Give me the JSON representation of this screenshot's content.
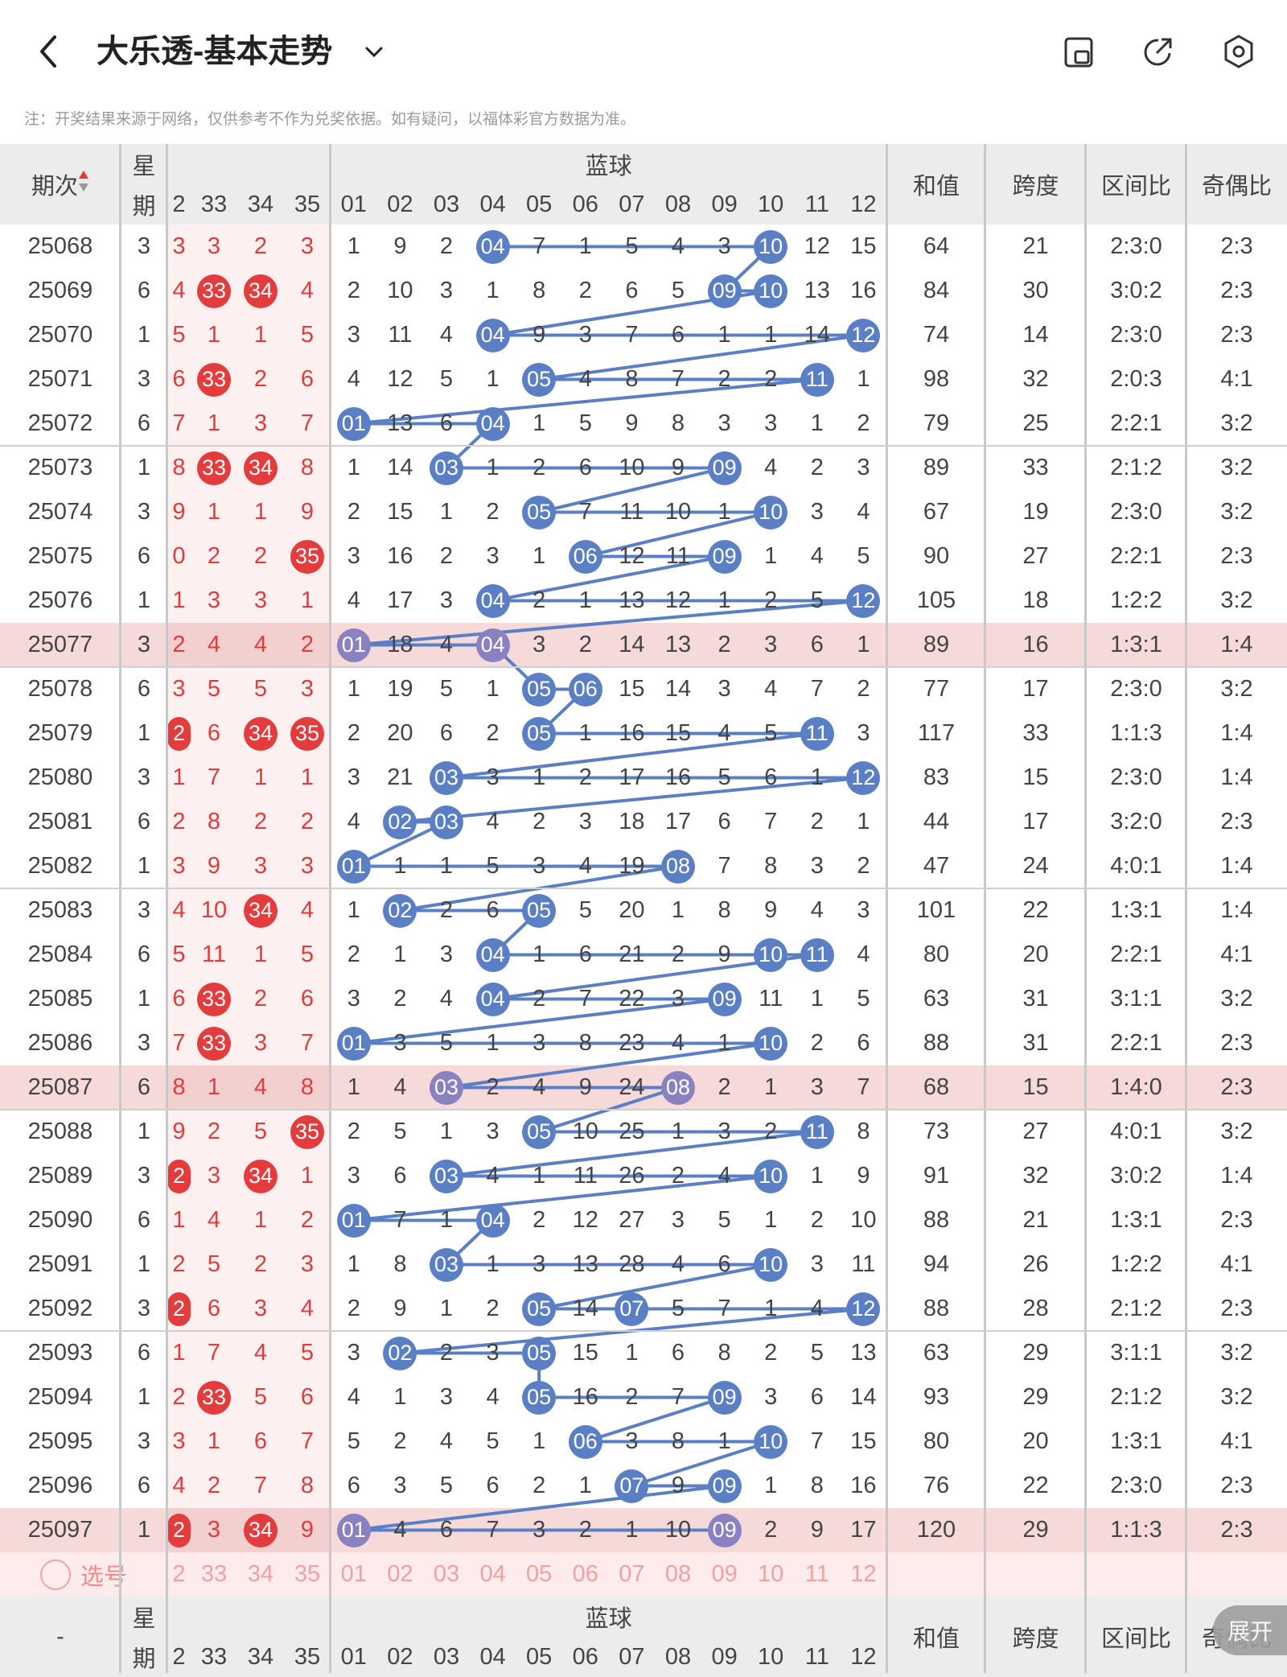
{
  "header": {
    "title": "大乐透-基本走势",
    "note": "注：开奖结果来源于网络，仅供参考不作为兑奖依据。如有疑问，以福体彩官方数据为准。"
  },
  "columns": {
    "period": "期次",
    "weekday_top": "星",
    "weekday_bottom": "期",
    "blue_group": "蓝球",
    "sum": "和值",
    "span": "跨度",
    "zone_ratio": "区间比",
    "odd_even": "奇偶比",
    "red_numbers": [
      "2",
      "33",
      "34",
      "35"
    ],
    "blue_numbers": [
      "01",
      "02",
      "03",
      "04",
      "05",
      "06",
      "07",
      "08",
      "09",
      "10",
      "11",
      "12"
    ]
  },
  "rows": [
    {
      "period": "25068",
      "week": "3",
      "red": [
        "3",
        "3",
        "2",
        "3"
      ],
      "blue": [
        "1",
        "9",
        "2",
        "04",
        "7",
        "1",
        "5",
        "4",
        "3",
        "10",
        "12",
        "15"
      ],
      "sum": "64",
      "span": "21",
      "zone": "2:3:0",
      "oe": "2:3"
    },
    {
      "period": "25069",
      "week": "6",
      "red": [
        "4",
        "33",
        "34",
        "4"
      ],
      "blue": [
        "2",
        "10",
        "3",
        "1",
        "8",
        "2",
        "6",
        "5",
        "09",
        "10",
        "13",
        "16"
      ],
      "sum": "84",
      "span": "30",
      "zone": "3:0:2",
      "oe": "2:3"
    },
    {
      "period": "25070",
      "week": "1",
      "red": [
        "5",
        "1",
        "1",
        "5"
      ],
      "blue": [
        "3",
        "11",
        "4",
        "04",
        "9",
        "3",
        "7",
        "6",
        "1",
        "1",
        "14",
        "12"
      ],
      "sum": "74",
      "span": "14",
      "zone": "2:3:0",
      "oe": "2:3"
    },
    {
      "period": "25071",
      "week": "3",
      "red": [
        "6",
        "33",
        "2",
        "6"
      ],
      "blue": [
        "4",
        "12",
        "5",
        "1",
        "05",
        "4",
        "8",
        "7",
        "2",
        "2",
        "11",
        "1"
      ],
      "sum": "98",
      "span": "32",
      "zone": "2:0:3",
      "oe": "4:1"
    },
    {
      "period": "25072",
      "week": "6",
      "red": [
        "7",
        "1",
        "3",
        "7"
      ],
      "blue": [
        "01",
        "13",
        "6",
        "04",
        "1",
        "5",
        "9",
        "8",
        "3",
        "3",
        "1",
        "2"
      ],
      "sum": "79",
      "span": "25",
      "zone": "2:2:1",
      "oe": "3:2"
    },
    {
      "period": "25073",
      "week": "1",
      "red": [
        "8",
        "33",
        "34",
        "8"
      ],
      "blue": [
        "1",
        "14",
        "03",
        "1",
        "2",
        "6",
        "10",
        "9",
        "09",
        "4",
        "2",
        "3"
      ],
      "sum": "89",
      "span": "33",
      "zone": "2:1:2",
      "oe": "3:2"
    },
    {
      "period": "25074",
      "week": "3",
      "red": [
        "9",
        "1",
        "1",
        "9"
      ],
      "blue": [
        "2",
        "15",
        "1",
        "2",
        "05",
        "7",
        "11",
        "10",
        "1",
        "10",
        "3",
        "4"
      ],
      "sum": "67",
      "span": "19",
      "zone": "2:3:0",
      "oe": "3:2"
    },
    {
      "period": "25075",
      "week": "6",
      "red": [
        "0",
        "2",
        "2",
        "35"
      ],
      "blue": [
        "3",
        "16",
        "2",
        "3",
        "1",
        "06",
        "12",
        "11",
        "09",
        "1",
        "4",
        "5"
      ],
      "sum": "90",
      "span": "27",
      "zone": "2:2:1",
      "oe": "2:3"
    },
    {
      "period": "25076",
      "week": "1",
      "red": [
        "1",
        "3",
        "3",
        "1"
      ],
      "blue": [
        "4",
        "17",
        "3",
        "04",
        "2",
        "1",
        "13",
        "12",
        "1",
        "2",
        "5",
        "12"
      ],
      "sum": "105",
      "span": "18",
      "zone": "1:2:2",
      "oe": "3:2"
    },
    {
      "period": "25077",
      "week": "3",
      "red": [
        "2",
        "4",
        "4",
        "2"
      ],
      "blue": [
        "01",
        "18",
        "4",
        "04",
        "3",
        "2",
        "14",
        "13",
        "2",
        "3",
        "6",
        "1"
      ],
      "sum": "89",
      "span": "16",
      "zone": "1:3:1",
      "oe": "1:4"
    },
    {
      "period": "25078",
      "week": "6",
      "red": [
        "3",
        "5",
        "5",
        "3"
      ],
      "blue": [
        "1",
        "19",
        "5",
        "1",
        "05",
        "06",
        "15",
        "14",
        "3",
        "4",
        "7",
        "2"
      ],
      "sum": "77",
      "span": "17",
      "zone": "2:3:0",
      "oe": "3:2"
    },
    {
      "period": "25079",
      "week": "1",
      "red": [
        "2",
        "6",
        "34",
        "35"
      ],
      "blue": [
        "2",
        "20",
        "6",
        "2",
        "05",
        "1",
        "16",
        "15",
        "4",
        "5",
        "11",
        "3"
      ],
      "sum": "117",
      "span": "33",
      "zone": "1:1:3",
      "oe": "1:4"
    },
    {
      "period": "25080",
      "week": "3",
      "red": [
        "1",
        "7",
        "1",
        "1"
      ],
      "blue": [
        "3",
        "21",
        "03",
        "3",
        "1",
        "2",
        "17",
        "16",
        "5",
        "6",
        "1",
        "12"
      ],
      "sum": "83",
      "span": "15",
      "zone": "2:3:0",
      "oe": "1:4"
    },
    {
      "period": "25081",
      "week": "6",
      "red": [
        "2",
        "8",
        "2",
        "2"
      ],
      "blue": [
        "4",
        "02",
        "03",
        "4",
        "2",
        "3",
        "18",
        "17",
        "6",
        "7",
        "2",
        "1"
      ],
      "sum": "44",
      "span": "17",
      "zone": "3:2:0",
      "oe": "2:3"
    },
    {
      "period": "25082",
      "week": "1",
      "red": [
        "3",
        "9",
        "3",
        "3"
      ],
      "blue": [
        "01",
        "1",
        "1",
        "5",
        "3",
        "4",
        "19",
        "08",
        "7",
        "8",
        "3",
        "2"
      ],
      "sum": "47",
      "span": "24",
      "zone": "4:0:1",
      "oe": "1:4"
    },
    {
      "period": "25083",
      "week": "3",
      "red": [
        "4",
        "10",
        "34",
        "4"
      ],
      "blue": [
        "1",
        "02",
        "2",
        "6",
        "05",
        "5",
        "20",
        "1",
        "8",
        "9",
        "4",
        "3"
      ],
      "sum": "101",
      "span": "22",
      "zone": "1:3:1",
      "oe": "1:4"
    },
    {
      "period": "25084",
      "week": "6",
      "red": [
        "5",
        "11",
        "1",
        "5"
      ],
      "blue": [
        "2",
        "1",
        "3",
        "04",
        "1",
        "6",
        "21",
        "2",
        "9",
        "10",
        "11",
        "4"
      ],
      "sum": "80",
      "span": "20",
      "zone": "2:2:1",
      "oe": "4:1"
    },
    {
      "period": "25085",
      "week": "1",
      "red": [
        "6",
        "33",
        "2",
        "6"
      ],
      "blue": [
        "3",
        "2",
        "4",
        "04",
        "2",
        "7",
        "22",
        "3",
        "09",
        "11",
        "1",
        "5"
      ],
      "sum": "63",
      "span": "31",
      "zone": "3:1:1",
      "oe": "3:2"
    },
    {
      "period": "25086",
      "week": "3",
      "red": [
        "7",
        "33",
        "3",
        "7"
      ],
      "blue": [
        "01",
        "3",
        "5",
        "1",
        "3",
        "8",
        "23",
        "4",
        "1",
        "10",
        "2",
        "6"
      ],
      "sum": "88",
      "span": "31",
      "zone": "2:2:1",
      "oe": "2:3"
    },
    {
      "period": "25087",
      "week": "6",
      "red": [
        "8",
        "1",
        "4",
        "8"
      ],
      "blue": [
        "1",
        "4",
        "03",
        "2",
        "4",
        "9",
        "24",
        "08",
        "2",
        "1",
        "3",
        "7"
      ],
      "sum": "68",
      "span": "15",
      "zone": "1:4:0",
      "oe": "2:3"
    },
    {
      "period": "25088",
      "week": "1",
      "red": [
        "9",
        "2",
        "5",
        "35"
      ],
      "blue": [
        "2",
        "5",
        "1",
        "3",
        "05",
        "10",
        "25",
        "1",
        "3",
        "2",
        "11",
        "8"
      ],
      "sum": "73",
      "span": "27",
      "zone": "4:0:1",
      "oe": "3:2"
    },
    {
      "period": "25089",
      "week": "3",
      "red": [
        "2",
        "3",
        "34",
        "1"
      ],
      "blue": [
        "3",
        "6",
        "03",
        "4",
        "1",
        "11",
        "26",
        "2",
        "4",
        "10",
        "1",
        "9"
      ],
      "sum": "91",
      "span": "32",
      "zone": "3:0:2",
      "oe": "1:4"
    },
    {
      "period": "25090",
      "week": "6",
      "red": [
        "1",
        "4",
        "1",
        "2"
      ],
      "blue": [
        "01",
        "7",
        "1",
        "04",
        "2",
        "12",
        "27",
        "3",
        "5",
        "1",
        "2",
        "10"
      ],
      "sum": "88",
      "span": "21",
      "zone": "1:3:1",
      "oe": "2:3"
    },
    {
      "period": "25091",
      "week": "1",
      "red": [
        "2",
        "5",
        "2",
        "3"
      ],
      "blue": [
        "1",
        "8",
        "03",
        "1",
        "3",
        "13",
        "28",
        "4",
        "6",
        "10",
        "3",
        "11"
      ],
      "sum": "94",
      "span": "26",
      "zone": "1:2:2",
      "oe": "4:1"
    },
    {
      "period": "25092",
      "week": "3",
      "red": [
        "2",
        "6",
        "3",
        "4"
      ],
      "blue": [
        "2",
        "9",
        "1",
        "2",
        "05",
        "14",
        "07",
        "5",
        "7",
        "1",
        "4",
        "12"
      ],
      "sum": "88",
      "span": "28",
      "zone": "2:1:2",
      "oe": "2:3"
    },
    {
      "period": "25093",
      "week": "6",
      "red": [
        "1",
        "7",
        "4",
        "5"
      ],
      "blue": [
        "3",
        "02",
        "2",
        "3",
        "05",
        "15",
        "1",
        "6",
        "8",
        "2",
        "5",
        "13"
      ],
      "sum": "63",
      "span": "29",
      "zone": "3:1:1",
      "oe": "3:2"
    },
    {
      "period": "25094",
      "week": "1",
      "red": [
        "2",
        "33",
        "5",
        "6"
      ],
      "blue": [
        "4",
        "1",
        "3",
        "4",
        "05",
        "16",
        "2",
        "7",
        "09",
        "3",
        "6",
        "14"
      ],
      "sum": "93",
      "span": "29",
      "zone": "2:1:2",
      "oe": "3:2"
    },
    {
      "period": "25095",
      "week": "3",
      "red": [
        "3",
        "1",
        "6",
        "7"
      ],
      "blue": [
        "5",
        "2",
        "4",
        "5",
        "1",
        "06",
        "3",
        "8",
        "1",
        "10",
        "7",
        "15"
      ],
      "sum": "80",
      "span": "20",
      "zone": "1:3:1",
      "oe": "4:1"
    },
    {
      "period": "25096",
      "week": "6",
      "red": [
        "4",
        "2",
        "7",
        "8"
      ],
      "blue": [
        "6",
        "3",
        "5",
        "6",
        "2",
        "1",
        "07",
        "9",
        "09",
        "1",
        "8",
        "16"
      ],
      "sum": "76",
      "span": "22",
      "zone": "2:3:0",
      "oe": "2:3"
    },
    {
      "period": "25097",
      "week": "1",
      "red": [
        "2",
        "3",
        "34",
        "9"
      ],
      "blue": [
        "01",
        "4",
        "6",
        "7",
        "3",
        "2",
        "1",
        "10",
        "09",
        "2",
        "9",
        "17"
      ],
      "sum": "120",
      "span": "29",
      "zone": "1:1:3",
      "oe": "2:3"
    }
  ],
  "select_row": {
    "label": "选号"
  },
  "footer_header": {
    "period": "-"
  },
  "expand_label": "展开",
  "colors": {
    "red_ball": "#e43c3c",
    "blue_ball": "#5b7fc4",
    "highlight_row": "#f6dada",
    "header_bg": "#ececec"
  }
}
